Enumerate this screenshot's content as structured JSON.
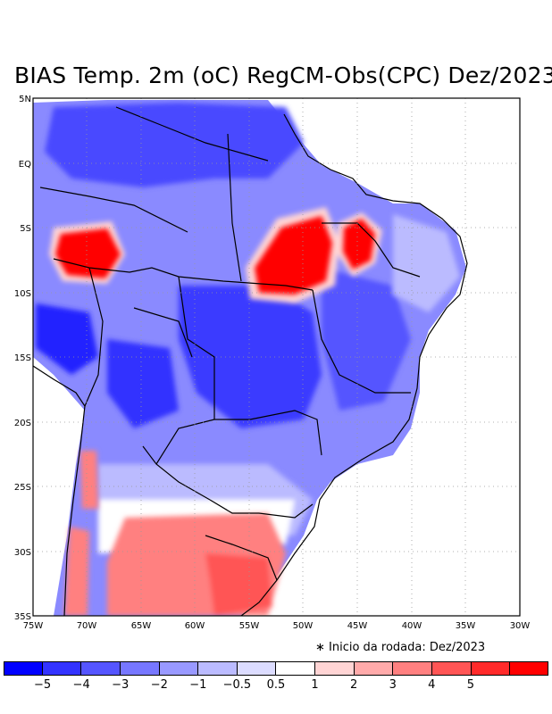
{
  "title": "BIAS Temp. 2m (oC) RegCM-Obs(CPC) Dez/2023",
  "footnote": "∗ Inicio da rodada: Dez/2023",
  "map": {
    "lat_labels": [
      "5N",
      "EQ",
      "5S",
      "10S",
      "15S",
      "20S",
      "25S",
      "30S",
      "35S"
    ],
    "lon_labels": [
      "75W",
      "70W",
      "65W",
      "60W",
      "55W",
      "50W",
      "45W",
      "40W",
      "35W",
      "30W"
    ],
    "regions": {
      "north": "strong-cold-bias",
      "west_amazon_hotspot": "warm-bias",
      "central_north_hotspot": "warm-bias",
      "northeast_hotspot": "warm-bias",
      "south": "warm-bias",
      "andes_west": "warm-bias"
    }
  },
  "legend": {
    "colors": [
      "#0000ff",
      "#3333ff",
      "#5555ff",
      "#7777ff",
      "#9999ff",
      "#bbbbff",
      "#dcdcff",
      "#ffffff",
      "#ffd4d4",
      "#ffaaaa",
      "#ff8080",
      "#ff5555",
      "#ff2a2a",
      "#ff0000"
    ],
    "labels": [
      "−5",
      "−4",
      "−3",
      "−2",
      "−1",
      "−0.5",
      "0.5",
      "1",
      "2",
      "3",
      "4",
      "5"
    ]
  }
}
